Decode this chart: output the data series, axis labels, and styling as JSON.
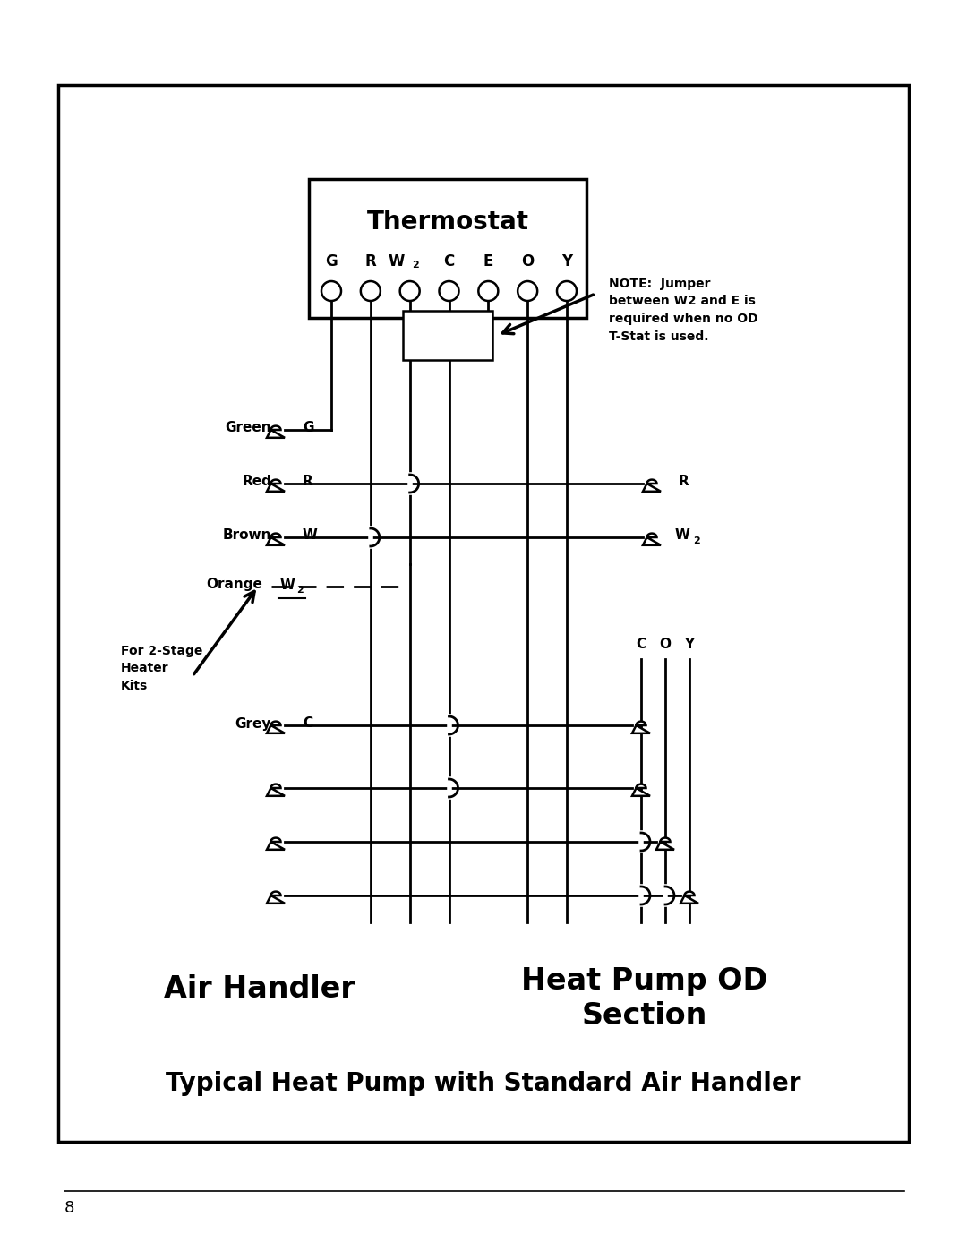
{
  "bg_color": "#ffffff",
  "page_number": "8",
  "title_main": "Typical Heat Pump with Standard Air Handler",
  "thermostat_label": "Thermostat",
  "note_text": "NOTE:  Jumper\nbetween W2 and E is\nrequired when no OD\nT-Stat is used.",
  "air_handler_label": "Air Handler",
  "heat_pump_label": "Heat Pump OD\nSection",
  "for_2stage_text": "For 2-Stage\nHeater\nKits",
  "grey_label": "Grey",
  "grey_terminal": "C",
  "lw_wire": 2.0,
  "lw_border": 2.5
}
